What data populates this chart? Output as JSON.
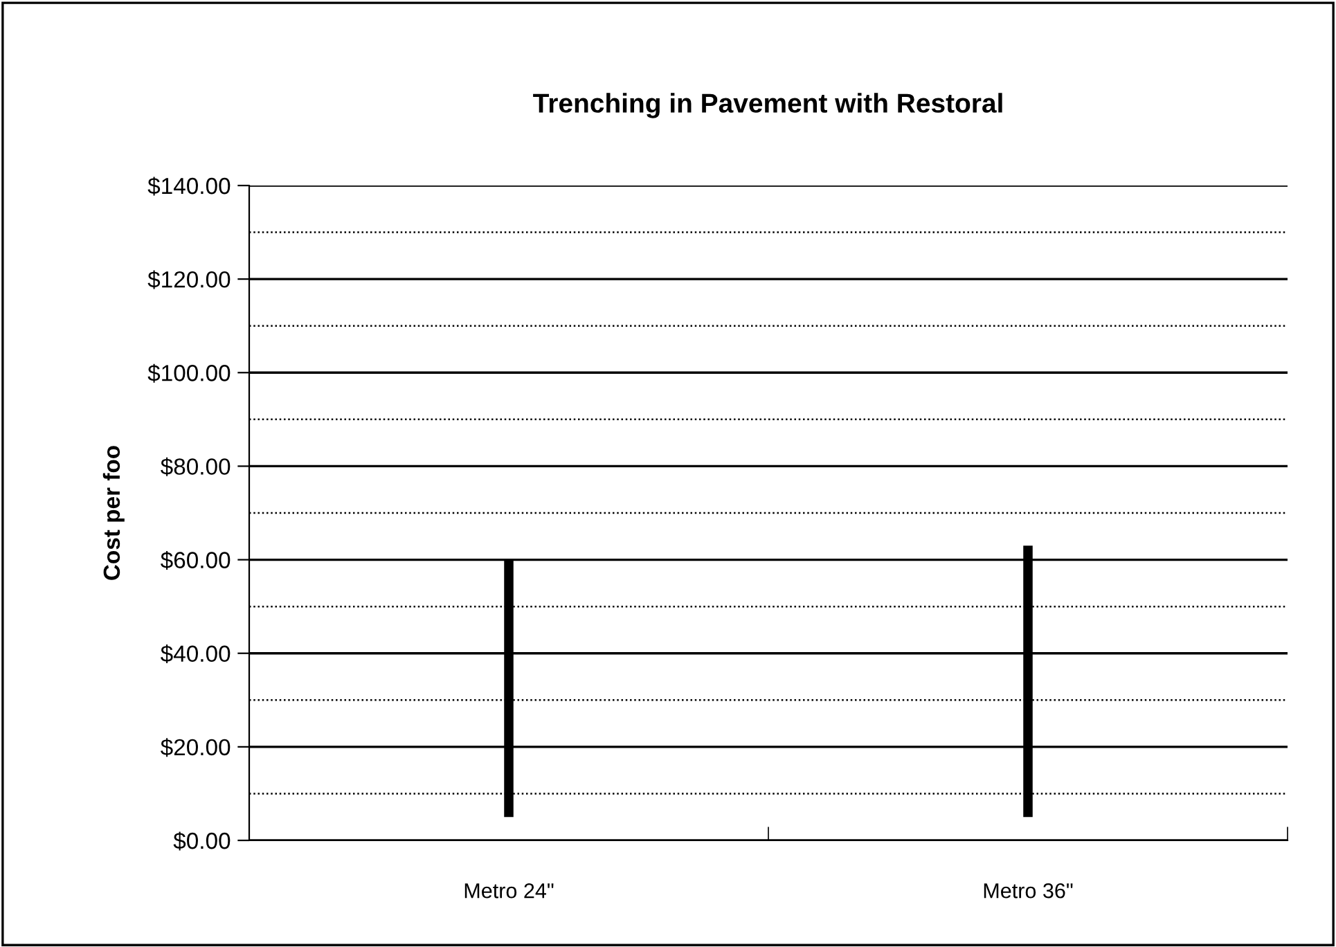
{
  "chart_data": {
    "type": "bar",
    "title": "Trenching in Pavement with Restoral",
    "ylabel": "Cost per foo",
    "categories": [
      "Metro 24\"",
      "Metro 36\""
    ],
    "series": [
      {
        "color": "#000000",
        "values": [
          55,
          58
        ],
        "base": [
          5,
          5
        ]
      }
    ],
    "ylim": [
      0,
      140
    ],
    "yticks": [
      {
        "value": 0,
        "label": "$0.00"
      },
      {
        "value": 10,
        "label": null
      },
      {
        "value": 20,
        "label": "$20.00"
      },
      {
        "value": 30,
        "label": null
      },
      {
        "value": 40,
        "label": "$40.00"
      },
      {
        "value": 50,
        "label": null
      },
      {
        "value": 60,
        "label": "$60.00"
      },
      {
        "value": 70,
        "label": null
      },
      {
        "value": 80,
        "label": "$80.00"
      },
      {
        "value": 90,
        "label": null
      },
      {
        "value": 100,
        "label": "$100.00"
      },
      {
        "value": 110,
        "label": null
      },
      {
        "value": 120,
        "label": "$120.00"
      },
      {
        "value": 130,
        "label": null
      },
      {
        "value": 140,
        "label": "$140.00"
      }
    ],
    "grid": "y",
    "legend": false
  }
}
